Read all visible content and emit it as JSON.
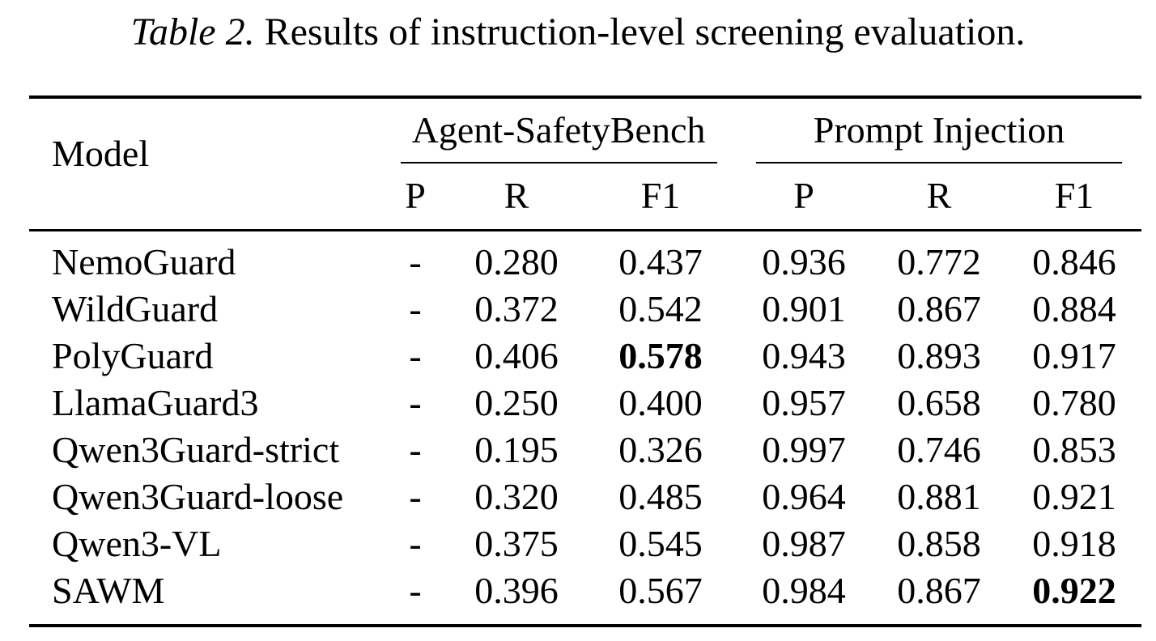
{
  "caption": {
    "label": "Table 2.",
    "text": "Results of instruction-level screening evaluation."
  },
  "table": {
    "model_header": "Model",
    "groups": [
      "Agent-SafetyBench",
      "Prompt Injection"
    ],
    "subheaders": [
      "P",
      "R",
      "F1",
      "P",
      "R",
      "F1"
    ],
    "rows": [
      {
        "model": "NemoGuard",
        "values": [
          "-",
          "0.280",
          "0.437",
          "0.936",
          "0.772",
          "0.846"
        ]
      },
      {
        "model": "WildGuard",
        "values": [
          "-",
          "0.372",
          "0.542",
          "0.901",
          "0.867",
          "0.884"
        ]
      },
      {
        "model": "PolyGuard",
        "values": [
          "-",
          "0.406",
          "0.578",
          "0.943",
          "0.893",
          "0.917"
        ]
      },
      {
        "model": "LlamaGuard3",
        "values": [
          "-",
          "0.250",
          "0.400",
          "0.957",
          "0.658",
          "0.780"
        ]
      },
      {
        "model": "Qwen3Guard-strict",
        "values": [
          "-",
          "0.195",
          "0.326",
          "0.997",
          "0.746",
          "0.853"
        ]
      },
      {
        "model": "Qwen3Guard-loose",
        "values": [
          "-",
          "0.320",
          "0.485",
          "0.964",
          "0.881",
          "0.921"
        ]
      },
      {
        "model": "Qwen3-VL",
        "values": [
          "-",
          "0.375",
          "0.545",
          "0.987",
          "0.858",
          "0.918"
        ]
      },
      {
        "model": "SAWM",
        "values": [
          "-",
          "0.396",
          "0.567",
          "0.984",
          "0.867",
          "0.922"
        ]
      }
    ],
    "bold_cells": [
      {
        "row": 2,
        "col": 2
      },
      {
        "row": 7,
        "col": 5
      }
    ]
  }
}
